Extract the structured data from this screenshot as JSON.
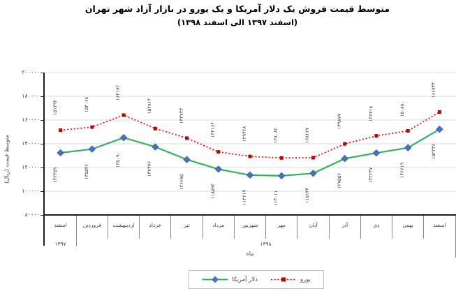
{
  "chart_data": {
    "type": "line",
    "title": "متوسط قیمت فروش یک دلار آمریکا و یک یورو در بازار آزاد شهر تهران",
    "subtitle": "(اسفند ۱۳۹۷ الی اسفند ۱۳۹۸)",
    "xlabel": "ماه",
    "ylabel": "متوسط قیمت (ریال)",
    "ylim": [
      80000,
      200000
    ],
    "grid": true,
    "yticks": [
      200000,
      180000,
      160000,
      140000,
      120000,
      100000,
      80000
    ],
    "yticks_fa": [
      "۲۰۰۰۰۰",
      "۱۸۰۰۰۰",
      "۱۶۰۰۰۰",
      "۱۴۰۰۰۰",
      "۱۲۰۰۰۰",
      "۱۰۰۰۰۰",
      "۸۰۰۰۰"
    ],
    "categories": [
      "اسفند",
      "فروردین",
      "اردیبهشت",
      "خرداد",
      "تیر",
      "مرداد",
      "شهریور",
      "مهر",
      "آبان",
      "آذر",
      "دی",
      "بهمن",
      "اسفند"
    ],
    "year_groups": [
      {
        "label": "۱۳۹۷",
        "from": 0,
        "to": 0
      },
      {
        "label": "۱۳۹۸",
        "from": 1,
        "to": 12
      }
    ],
    "series": [
      {
        "name": "دلار آمریکا",
        "style": "solid",
        "color": "#33B35C",
        "marker": "diamond",
        "marker_color": "#4472C4",
        "label_side": "below",
        "values": [
          132359,
          135526,
          145090,
          137376,
          126685,
          118594,
          113617,
          113011,
          115134,
          127556,
          132237,
          136619,
          152236
        ],
        "labels_fa": [
          "۱۳۲۳۵۹",
          "۱۳۵۵۲۶",
          "۱۴۵۰۹۰",
          "۱۳۷۳۷۶",
          "۱۲۶۶۸۵",
          "۱۱۸۵۹۴",
          "۱۱۳۶۱۷",
          "۱۱۳۰۱۱",
          "۱۱۵۱۳۴",
          "۱۲۷۵۵۶",
          "۱۳۲۲۳۷",
          "۱۳۶۶۱۹",
          "۱۵۲۲۳۶"
        ]
      },
      {
        "name": "یورو",
        "style": "dotted",
        "color": "#FF0000",
        "marker": "square",
        "marker_color": "#C00000",
        "label_side": "above",
        "values": [
          151492,
          154068,
          164172,
          152814,
          144743,
          133164,
          129368,
          128082,
          128267,
          139877,
          146718,
          150880,
          166743
        ],
        "labels_fa": [
          "۱۵۱۴۹۲",
          "۱۵۴۰۶۸",
          "۱۶۴۱۷۲",
          "۱۵۲۸۱۴",
          "۱۴۴۷۴۳",
          "۱۳۳۱۶۴",
          "۱۲۹۳۶۸",
          "۱۲۸۰۸۲",
          "۱۲۸۲۶۷",
          "۱۳۹۸۷۷",
          "۱۴۶۷۱۸",
          "۱۵۰۸۸۰",
          "۱۶۶۷۴۳"
        ]
      }
    ],
    "legend": {
      "position": "bottom",
      "items": [
        "دلار آمریکا",
        "یورو"
      ]
    },
    "colors": {
      "grid": "#D9D9D9",
      "axis": "#1a1a1a",
      "tick_text": "#404040",
      "category_separator": "#8a8a8a",
      "legend_border": "#BFBFBF"
    }
  }
}
